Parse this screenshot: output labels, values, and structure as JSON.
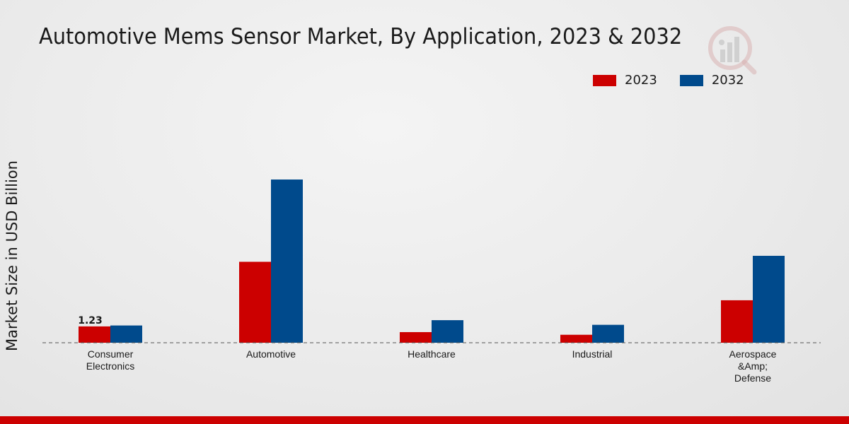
{
  "chart_data": {
    "type": "bar",
    "title": "Automotive Mems Sensor Market, By Application, 2023 & 2032",
    "xlabel": "",
    "ylabel": "Market Size in USD Billion",
    "categories": [
      "Consumer Electronics",
      "Automotive",
      "Healthcare",
      "Industrial",
      "Aerospace &Amp; Defense"
    ],
    "series": [
      {
        "name": "2023",
        "color": "#cc0000",
        "values": [
          1.23,
          6.1,
          0.8,
          0.6,
          3.2
        ]
      },
      {
        "name": "2032",
        "color": "#004a8c",
        "values": [
          1.3,
          12.3,
          1.7,
          1.35,
          6.55
        ]
      }
    ],
    "data_labels": [
      {
        "series": 0,
        "category": 0,
        "text": "1.23"
      }
    ],
    "ylim": [
      0,
      18
    ],
    "grid": false,
    "legend": "top-right"
  }
}
